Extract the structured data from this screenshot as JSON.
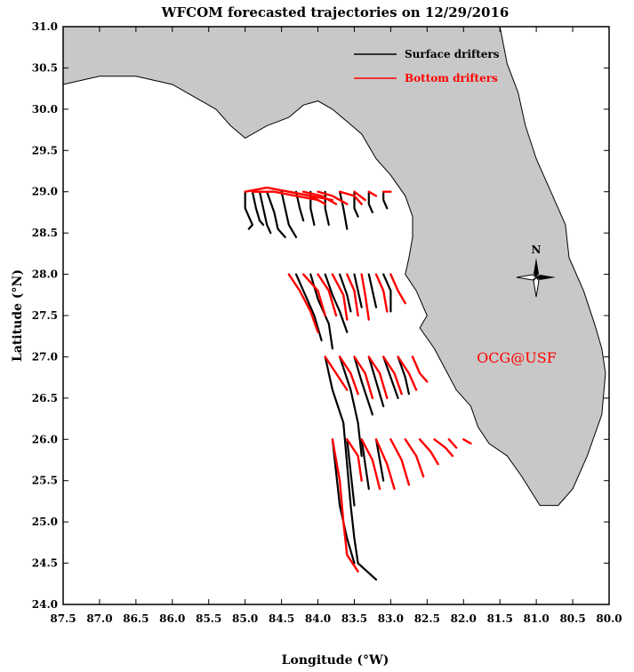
{
  "title": "WFCOM forecasted trajectories on 12/29/2016",
  "xlabel": "Longitude (°W)",
  "ylabel": "Latitude (°N)",
  "watermark": "OCG@USF",
  "compass_label": "N",
  "colors": {
    "land": "#c8c8c8",
    "coast": "#000000",
    "surface": "#000000",
    "bottom": "#ff0000",
    "watermark": "#ff0000"
  },
  "legend": {
    "surface_label": "Surface drifters",
    "bottom_label": "Bottom drifters",
    "placement": "top-right"
  },
  "chart_data": {
    "type": "line",
    "xlim": [
      87.5,
      80.0
    ],
    "ylim": [
      24.0,
      31.0
    ],
    "x_ticks": [
      "87.5",
      "87.0",
      "86.5",
      "86.0",
      "85.5",
      "85.0",
      "84.5",
      "84.0",
      "83.5",
      "83.0",
      "82.5",
      "82.0",
      "81.5",
      "81.0",
      "80.5",
      "80.0"
    ],
    "y_ticks": [
      "24.0",
      "24.5",
      "25.0",
      "25.5",
      "26.0",
      "26.5",
      "27.0",
      "27.5",
      "28.0",
      "28.5",
      "29.0",
      "29.5",
      "30.0",
      "30.5",
      "31.0"
    ],
    "land_outline": [
      [
        87.5,
        31.0
      ],
      [
        87.5,
        30.3
      ],
      [
        87.0,
        30.4
      ],
      [
        86.5,
        30.4
      ],
      [
        86.0,
        30.3
      ],
      [
        85.7,
        30.15
      ],
      [
        85.4,
        30.0
      ],
      [
        85.2,
        29.8
      ],
      [
        85.0,
        29.65
      ],
      [
        84.7,
        29.8
      ],
      [
        84.4,
        29.9
      ],
      [
        84.2,
        30.05
      ],
      [
        84.0,
        30.1
      ],
      [
        83.8,
        30.0
      ],
      [
        83.6,
        29.85
      ],
      [
        83.4,
        29.7
      ],
      [
        83.2,
        29.4
      ],
      [
        83.0,
        29.2
      ],
      [
        82.8,
        28.95
      ],
      [
        82.7,
        28.7
      ],
      [
        82.7,
        28.45
      ],
      [
        82.75,
        28.2
      ],
      [
        82.8,
        28.0
      ],
      [
        82.65,
        27.8
      ],
      [
        82.5,
        27.5
      ],
      [
        82.6,
        27.35
      ],
      [
        82.4,
        27.1
      ],
      [
        82.25,
        26.85
      ],
      [
        82.1,
        26.6
      ],
      [
        81.9,
        26.4
      ],
      [
        81.8,
        26.15
      ],
      [
        81.65,
        25.95
      ],
      [
        81.4,
        25.8
      ],
      [
        81.2,
        25.55
      ],
      [
        80.95,
        25.2
      ],
      [
        80.7,
        25.2
      ],
      [
        80.5,
        25.4
      ],
      [
        80.3,
        25.8
      ],
      [
        80.1,
        26.3
      ],
      [
        80.05,
        26.8
      ],
      [
        80.1,
        27.1
      ],
      [
        80.2,
        27.4
      ],
      [
        80.35,
        27.8
      ],
      [
        80.55,
        28.2
      ],
      [
        80.6,
        28.6
      ],
      [
        80.8,
        29.0
      ],
      [
        81.0,
        29.4
      ],
      [
        81.15,
        29.8
      ],
      [
        81.25,
        30.2
      ],
      [
        81.4,
        30.55
      ],
      [
        81.5,
        31.0
      ]
    ],
    "series": [
      {
        "name": "Surface drifters",
        "tracks": [
          [
            [
              85.0,
              29.0
            ],
            [
              85.0,
              28.8
            ],
            [
              84.9,
              28.6
            ],
            [
              84.95,
              28.55
            ]
          ],
          [
            [
              84.9,
              29.0
            ],
            [
              84.85,
              28.8
            ],
            [
              84.8,
              28.65
            ],
            [
              84.75,
              28.6
            ]
          ],
          [
            [
              84.8,
              29.0
            ],
            [
              84.75,
              28.8
            ],
            [
              84.7,
              28.6
            ],
            [
              84.65,
              28.5
            ]
          ],
          [
            [
              84.7,
              29.0
            ],
            [
              84.6,
              28.75
            ],
            [
              84.55,
              28.55
            ],
            [
              84.45,
              28.45
            ]
          ],
          [
            [
              84.5,
              29.0
            ],
            [
              84.45,
              28.8
            ],
            [
              84.4,
              28.6
            ],
            [
              84.3,
              28.45
            ]
          ],
          [
            [
              84.3,
              29.0
            ],
            [
              84.25,
              28.8
            ],
            [
              84.2,
              28.65
            ]
          ],
          [
            [
              84.1,
              29.0
            ],
            [
              84.1,
              28.8
            ],
            [
              84.05,
              28.6
            ]
          ],
          [
            [
              83.9,
              29.0
            ],
            [
              83.9,
              28.8
            ],
            [
              83.85,
              28.6
            ]
          ],
          [
            [
              83.7,
              29.0
            ],
            [
              83.65,
              28.8
            ],
            [
              83.6,
              28.55
            ]
          ],
          [
            [
              83.5,
              29.0
            ],
            [
              83.5,
              28.8
            ],
            [
              83.45,
              28.7
            ]
          ],
          [
            [
              83.3,
              29.0
            ],
            [
              83.3,
              28.85
            ],
            [
              83.25,
              28.75
            ]
          ],
          [
            [
              83.1,
              29.0
            ],
            [
              83.1,
              28.9
            ],
            [
              83.05,
              28.8
            ]
          ],
          [
            [
              84.3,
              28.0
            ],
            [
              84.15,
              27.7
            ],
            [
              84.05,
              27.5
            ],
            [
              83.95,
              27.2
            ]
          ],
          [
            [
              84.1,
              28.0
            ],
            [
              84.0,
              27.7
            ],
            [
              83.85,
              27.4
            ],
            [
              83.8,
              27.1
            ]
          ],
          [
            [
              83.9,
              28.0
            ],
            [
              83.8,
              27.75
            ],
            [
              83.7,
              27.55
            ],
            [
              83.6,
              27.3
            ]
          ],
          [
            [
              83.7,
              28.0
            ],
            [
              83.6,
              27.75
            ],
            [
              83.55,
              27.55
            ]
          ],
          [
            [
              83.5,
              28.0
            ],
            [
              83.45,
              27.8
            ],
            [
              83.4,
              27.6
            ]
          ],
          [
            [
              83.3,
              28.0
            ],
            [
              83.25,
              27.8
            ],
            [
              83.2,
              27.6
            ]
          ],
          [
            [
              83.1,
              28.0
            ],
            [
              83.0,
              27.8
            ],
            [
              83.0,
              27.55
            ]
          ],
          [
            [
              83.9,
              27.0
            ],
            [
              83.8,
              26.6
            ],
            [
              83.65,
              26.2
            ],
            [
              83.6,
              25.7
            ],
            [
              83.55,
              25.2
            ],
            [
              83.5,
              24.8
            ],
            [
              83.45,
              24.5
            ],
            [
              83.2,
              24.3
            ]
          ],
          [
            [
              83.7,
              27.0
            ],
            [
              83.55,
              26.6
            ],
            [
              83.45,
              26.2
            ],
            [
              83.4,
              25.8
            ]
          ],
          [
            [
              83.5,
              27.0
            ],
            [
              83.4,
              26.7
            ],
            [
              83.25,
              26.3
            ]
          ],
          [
            [
              83.3,
              27.0
            ],
            [
              83.2,
              26.7
            ],
            [
              83.1,
              26.4
            ]
          ],
          [
            [
              83.1,
              27.0
            ],
            [
              83.0,
              26.75
            ],
            [
              82.9,
              26.5
            ]
          ],
          [
            [
              82.9,
              27.0
            ],
            [
              82.8,
              26.75
            ],
            [
              82.75,
              26.55
            ]
          ],
          [
            [
              83.8,
              26.0
            ],
            [
              83.75,
              25.6
            ],
            [
              83.7,
              25.2
            ],
            [
              83.6,
              24.8
            ],
            [
              83.5,
              24.5
            ]
          ],
          [
            [
              83.6,
              26.0
            ],
            [
              83.55,
              25.6
            ],
            [
              83.5,
              25.2
            ]
          ],
          [
            [
              83.4,
              26.0
            ],
            [
              83.35,
              25.7
            ],
            [
              83.3,
              25.4
            ]
          ],
          [
            [
              83.2,
              26.0
            ],
            [
              83.15,
              25.75
            ],
            [
              83.1,
              25.5
            ]
          ]
        ]
      },
      {
        "name": "Bottom drifters",
        "tracks": [
          [
            [
              85.0,
              29.0
            ],
            [
              84.7,
              29.05
            ],
            [
              84.4,
              29.0
            ],
            [
              84.1,
              28.95
            ],
            [
              83.8,
              28.9
            ]
          ],
          [
            [
              84.9,
              29.0
            ],
            [
              84.6,
              29.0
            ],
            [
              84.3,
              28.95
            ],
            [
              84.0,
              28.9
            ]
          ],
          [
            [
              84.4,
              29.0
            ],
            [
              84.1,
              28.95
            ],
            [
              83.9,
              28.85
            ]
          ],
          [
            [
              84.2,
              29.0
            ],
            [
              83.95,
              28.95
            ],
            [
              83.75,
              28.85
            ]
          ],
          [
            [
              84.0,
              29.0
            ],
            [
              83.8,
              28.95
            ],
            [
              83.6,
              28.85
            ]
          ],
          [
            [
              83.7,
              29.0
            ],
            [
              83.5,
              28.95
            ],
            [
              83.4,
              28.85
            ]
          ],
          [
            [
              83.5,
              29.0
            ],
            [
              83.35,
              28.9
            ]
          ],
          [
            [
              83.3,
              29.0
            ],
            [
              83.2,
              28.95
            ]
          ],
          [
            [
              83.1,
              29.0
            ],
            [
              83.0,
              29.0
            ]
          ],
          [
            [
              84.4,
              28.0
            ],
            [
              84.25,
              27.8
            ],
            [
              84.1,
              27.55
            ],
            [
              84.0,
              27.3
            ]
          ],
          [
            [
              84.2,
              28.0
            ],
            [
              84.0,
              27.8
            ],
            [
              83.9,
              27.5
            ]
          ],
          [
            [
              84.0,
              28.0
            ],
            [
              83.85,
              27.8
            ],
            [
              83.75,
              27.5
            ]
          ],
          [
            [
              83.8,
              28.0
            ],
            [
              83.65,
              27.75
            ],
            [
              83.6,
              27.45
            ]
          ],
          [
            [
              83.6,
              28.0
            ],
            [
              83.5,
              27.8
            ],
            [
              83.45,
              27.5
            ]
          ],
          [
            [
              83.4,
              28.0
            ],
            [
              83.35,
              27.75
            ],
            [
              83.3,
              27.45
            ]
          ],
          [
            [
              83.2,
              28.0
            ],
            [
              83.1,
              27.8
            ],
            [
              83.05,
              27.55
            ]
          ],
          [
            [
              83.0,
              28.0
            ],
            [
              82.9,
              27.8
            ],
            [
              82.8,
              27.65
            ]
          ],
          [
            [
              83.9,
              27.0
            ],
            [
              83.75,
              26.8
            ],
            [
              83.6,
              26.6
            ]
          ],
          [
            [
              83.7,
              27.0
            ],
            [
              83.55,
              26.8
            ],
            [
              83.45,
              26.55
            ]
          ],
          [
            [
              83.5,
              27.0
            ],
            [
              83.35,
              26.8
            ],
            [
              83.25,
              26.5
            ]
          ],
          [
            [
              83.3,
              27.0
            ],
            [
              83.15,
              26.8
            ],
            [
              83.05,
              26.5
            ]
          ],
          [
            [
              83.1,
              27.0
            ],
            [
              82.95,
              26.8
            ],
            [
              82.85,
              26.55
            ]
          ],
          [
            [
              82.9,
              27.0
            ],
            [
              82.75,
              26.8
            ],
            [
              82.65,
              26.6
            ]
          ],
          [
            [
              82.7,
              27.0
            ],
            [
              82.6,
              26.8
            ],
            [
              82.5,
              26.7
            ]
          ],
          [
            [
              83.8,
              26.0
            ],
            [
              83.7,
              25.5
            ],
            [
              83.65,
              25.0
            ],
            [
              83.6,
              24.6
            ],
            [
              83.45,
              24.4
            ]
          ],
          [
            [
              83.6,
              26.0
            ],
            [
              83.45,
              25.8
            ],
            [
              83.4,
              25.5
            ]
          ],
          [
            [
              83.4,
              26.0
            ],
            [
              83.25,
              25.75
            ],
            [
              83.15,
              25.4
            ]
          ],
          [
            [
              83.2,
              26.0
            ],
            [
              83.05,
              25.7
            ],
            [
              82.95,
              25.4
            ]
          ],
          [
            [
              83.0,
              26.0
            ],
            [
              82.85,
              25.75
            ],
            [
              82.75,
              25.45
            ]
          ],
          [
            [
              82.8,
              26.0
            ],
            [
              82.65,
              25.8
            ],
            [
              82.55,
              25.55
            ]
          ],
          [
            [
              82.6,
              26.0
            ],
            [
              82.45,
              25.85
            ],
            [
              82.35,
              25.7
            ]
          ],
          [
            [
              82.4,
              26.0
            ],
            [
              82.25,
              25.9
            ],
            [
              82.15,
              25.8
            ]
          ],
          [
            [
              82.2,
              26.0
            ],
            [
              82.1,
              25.9
            ]
          ],
          [
            [
              82.0,
              26.0
            ],
            [
              81.9,
              25.95
            ]
          ]
        ]
      }
    ]
  }
}
